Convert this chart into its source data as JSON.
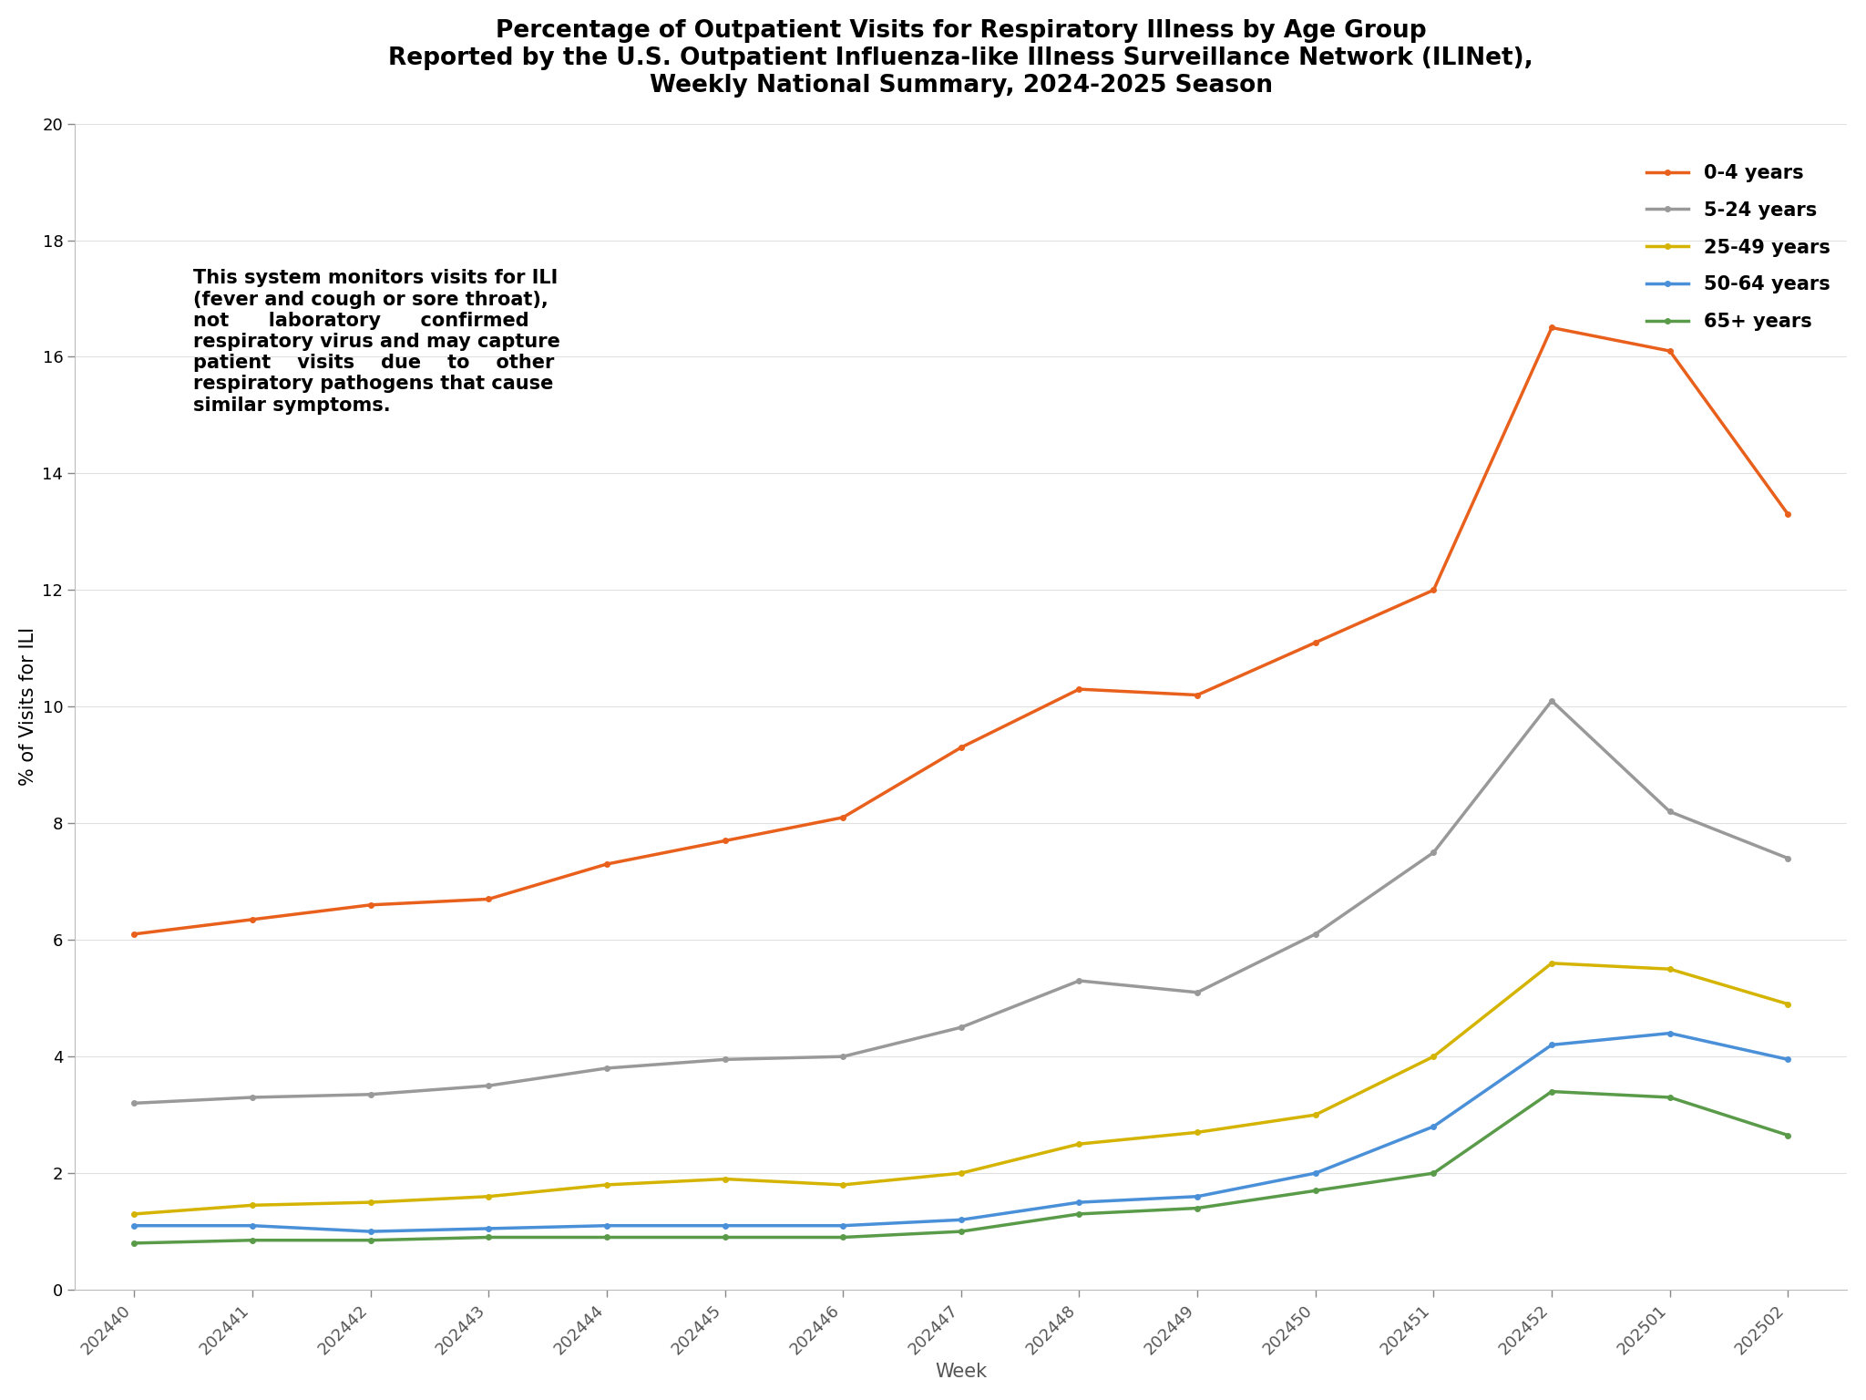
{
  "title_line1": "Percentage of Outpatient Visits for Respiratory Illness by Age Group",
  "title_line2": "Reported by the U.S. Outpatient Influenza-like Illness Surveillance Network (ILINet),",
  "title_line3": "Weekly National Summary, 2024-2025 Season",
  "xlabel": "Week",
  "ylabel": "% of Visits for ILI",
  "weeks": [
    "202440",
    "202441",
    "202442",
    "202443",
    "202444",
    "202445",
    "202446",
    "202447",
    "202448",
    "202449",
    "202450",
    "202451",
    "202452",
    "202501",
    "202502"
  ],
  "series": {
    "0-4 years": {
      "color": "#E8601C",
      "values": [
        6.1,
        6.35,
        6.6,
        6.7,
        7.3,
        7.7,
        8.1,
        9.3,
        10.3,
        10.2,
        11.1,
        12.0,
        16.5,
        16.1,
        13.3
      ]
    },
    "5-24 years": {
      "color": "#999999",
      "values": [
        3.2,
        3.3,
        3.35,
        3.5,
        3.8,
        3.95,
        4.0,
        4.5,
        5.3,
        5.1,
        6.1,
        7.5,
        10.1,
        8.2,
        7.4
      ]
    },
    "25-49 years": {
      "color": "#D4B400",
      "values": [
        1.3,
        1.45,
        1.5,
        1.6,
        1.8,
        1.9,
        1.8,
        2.0,
        2.5,
        2.7,
        3.0,
        4.0,
        5.6,
        5.5,
        4.9
      ]
    },
    "50-64 years": {
      "color": "#4A90D9",
      "values": [
        1.1,
        1.1,
        1.0,
        1.05,
        1.1,
        1.1,
        1.1,
        1.2,
        1.5,
        1.6,
        2.0,
        2.8,
        4.2,
        4.4,
        3.95
      ]
    },
    "65+ years": {
      "color": "#5A9B4A",
      "values": [
        0.8,
        0.85,
        0.85,
        0.9,
        0.9,
        0.9,
        0.9,
        1.0,
        1.3,
        1.4,
        1.7,
        2.0,
        3.4,
        3.3,
        2.65
      ]
    }
  },
  "ylim": [
    0,
    20
  ],
  "yticks": [
    0,
    2,
    4,
    6,
    8,
    10,
    12,
    14,
    16,
    18,
    20
  ],
  "background_color": "#ffffff",
  "title_fontsize": 19,
  "axis_label_fontsize": 15,
  "tick_fontsize": 13,
  "legend_fontsize": 15,
  "annotation_fontsize": 15,
  "line_width": 2.5,
  "marker": "o",
  "marker_size": 4
}
